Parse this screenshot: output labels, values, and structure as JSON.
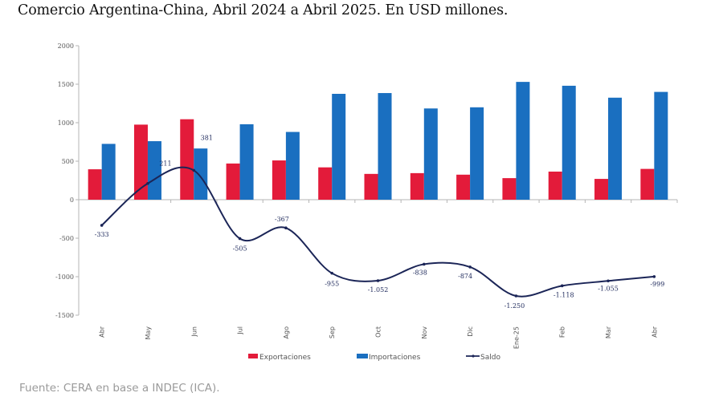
{
  "title": "Comercio Argentina-China, Abril 2024 a Abril 2025. En USD millones.",
  "source": "Fuente: CERA en base a INDEC (ICA).",
  "colors": {
    "exportaciones": "#e31b3a",
    "importaciones": "#1a6fc0",
    "saldo": "#1b2557",
    "axis": "#b5b5b5"
  },
  "chart_data": {
    "type": "bar",
    "title": "Comercio Argentina-China, Abril 2024 a Abril 2025. En USD millones.",
    "xlabel": "",
    "ylabel": "",
    "ylim": [
      -1500,
      2000
    ],
    "yticks": [
      2000,
      1500,
      1000,
      500,
      0,
      -500,
      -1000,
      -1500
    ],
    "ytick_labels": [
      "2000",
      "1500",
      "1000",
      "500",
      "0",
      "-500",
      "-1000",
      "-1500"
    ],
    "grid": false,
    "legend_position": "bottom",
    "categories": [
      "Abr",
      "May",
      "Jun",
      "Jul",
      "Ago",
      "Sep",
      "Oct",
      "Nov",
      "Dic",
      "Ene-25",
      "Feb",
      "Mar",
      "Abr"
    ],
    "series": [
      {
        "name": "Exportaciones",
        "type": "bar",
        "values": [
          395,
          975,
          1045,
          470,
          510,
          420,
          335,
          345,
          325,
          280,
          365,
          270,
          400
        ]
      },
      {
        "name": "Importaciones",
        "type": "bar",
        "values": [
          725,
          760,
          665,
          980,
          880,
          1375,
          1385,
          1185,
          1200,
          1530,
          1480,
          1325,
          1400
        ]
      },
      {
        "name": "Saldo",
        "type": "line",
        "values": [
          -333,
          211,
          381,
          -505,
          -367,
          -955,
          -1052,
          -838,
          -874,
          -1250,
          -1118,
          -1055,
          -999
        ],
        "labels": [
          "-333",
          "211",
          "381",
          "-505",
          "-367",
          "-955",
          "-1.052",
          "-838",
          "-874",
          "-1.250",
          "-1.118",
          "-1.055",
          "-999"
        ]
      }
    ]
  }
}
